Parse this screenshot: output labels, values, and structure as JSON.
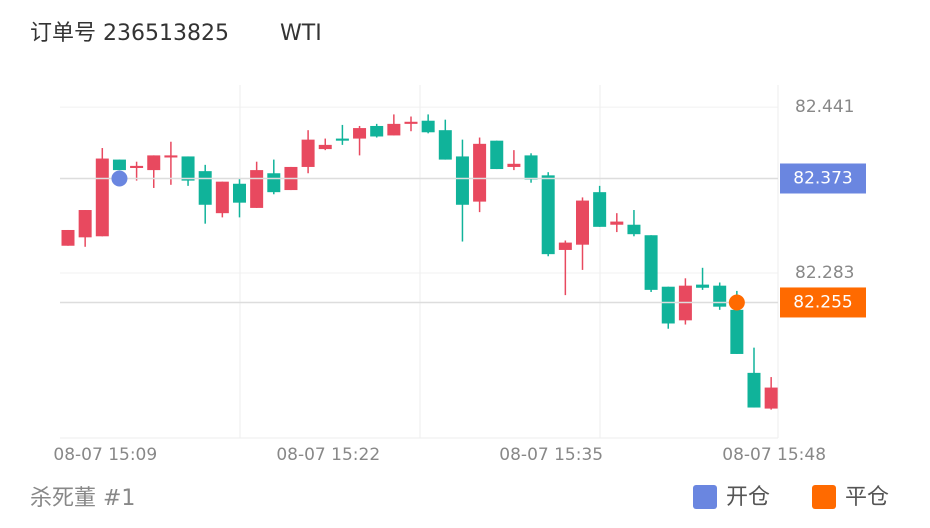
{
  "chart_data": {
    "type": "candlestick",
    "title": "订单号 236513825",
    "symbol": "WTI",
    "subtitle": "杀死董 #1",
    "categories": [
      null,
      null,
      "08-07 15:09",
      null,
      null,
      null,
      null,
      null,
      null,
      null,
      null,
      null,
      null,
      null,
      null,
      "08-07 15:22",
      null,
      null,
      null,
      null,
      null,
      null,
      null,
      null,
      null,
      null,
      null,
      null,
      "08-07 15:35",
      null,
      null,
      null,
      null,
      null,
      null,
      null,
      null,
      null,
      null,
      null,
      null,
      "08-07 15:48"
    ],
    "open": [
      82.309,
      82.317,
      82.318,
      82.391,
      82.383,
      82.381,
      82.393,
      82.394,
      82.38,
      82.34,
      82.368,
      82.345,
      82.378,
      82.362,
      82.384,
      82.401,
      82.411,
      82.411,
      82.423,
      82.414,
      82.425,
      82.428,
      82.419,
      82.394,
      82.351,
      82.409,
      82.384,
      82.395,
      82.376,
      82.305,
      82.31,
      82.36,
      82.329,
      82.329,
      82.319,
      82.27,
      82.238,
      82.272,
      82.271,
      82.248,
      82.188,
      82.154
    ],
    "high": [
      82.324,
      82.343,
      82.402,
      82.391,
      82.389,
      82.395,
      82.408,
      82.394,
      82.386,
      82.37,
      82.373,
      82.389,
      82.391,
      82.384,
      82.419,
      82.411,
      82.424,
      82.423,
      82.425,
      82.434,
      82.432,
      82.434,
      82.429,
      82.41,
      82.412,
      82.409,
      82.4,
      82.397,
      82.379,
      82.314,
      82.355,
      82.366,
      82.34,
      82.343,
      82.319,
      82.27,
      82.278,
      82.288,
      82.274,
      82.266,
      82.212,
      82.184
    ],
    "low": [
      82.309,
      82.308,
      82.318,
      82.381,
      82.371,
      82.364,
      82.367,
      82.366,
      82.33,
      82.336,
      82.336,
      82.345,
      82.358,
      82.362,
      82.378,
      82.4,
      82.405,
      82.395,
      82.412,
      82.414,
      82.418,
      82.416,
      82.391,
      82.313,
      82.341,
      82.382,
      82.381,
      82.369,
      82.299,
      82.262,
      82.286,
      82.327,
      82.322,
      82.318,
      82.265,
      82.23,
      82.234,
      82.267,
      82.248,
      82.206,
      82.155,
      82.153
    ],
    "close": [
      82.324,
      82.343,
      82.392,
      82.381,
      82.385,
      82.395,
      82.395,
      82.371,
      82.348,
      82.37,
      82.35,
      82.381,
      82.36,
      82.384,
      82.41,
      82.405,
      82.409,
      82.421,
      82.413,
      82.425,
      82.427,
      82.417,
      82.391,
      82.348,
      82.406,
      82.382,
      82.387,
      82.372,
      82.301,
      82.312,
      82.352,
      82.327,
      82.332,
      82.32,
      82.267,
      82.235,
      82.271,
      82.269,
      82.251,
      82.206,
      82.155,
      82.174
    ],
    "up_color": "#e8495f",
    "down_color": "#10b39a",
    "ylim": [
      82.126,
      82.462
    ],
    "yticks": [
      82.441,
      82.283
    ],
    "grid": true,
    "markers": [
      {
        "name": "开仓",
        "color": "#6a86e0",
        "index": 3,
        "value": 82.373
      },
      {
        "name": "平仓",
        "color": "#ff6a00",
        "index": 39,
        "value": 82.255
      }
    ],
    "legend": "bottom-right"
  }
}
